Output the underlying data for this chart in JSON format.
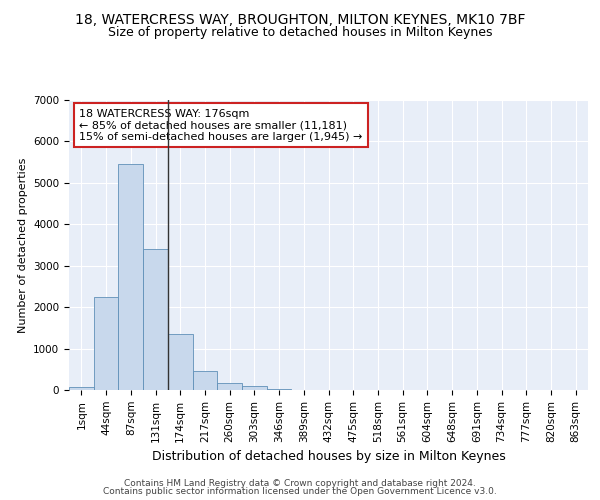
{
  "title1": "18, WATERCRESS WAY, BROUGHTON, MILTON KEYNES, MK10 7BF",
  "title2": "Size of property relative to detached houses in Milton Keynes",
  "xlabel": "Distribution of detached houses by size in Milton Keynes",
  "ylabel": "Number of detached properties",
  "categories": [
    "1sqm",
    "44sqm",
    "87sqm",
    "131sqm",
    "174sqm",
    "217sqm",
    "260sqm",
    "303sqm",
    "346sqm",
    "389sqm",
    "432sqm",
    "475sqm",
    "518sqm",
    "561sqm",
    "604sqm",
    "648sqm",
    "691sqm",
    "734sqm",
    "777sqm",
    "820sqm",
    "863sqm"
  ],
  "values": [
    70,
    2250,
    5450,
    3400,
    1350,
    450,
    170,
    90,
    30,
    5,
    2,
    1,
    0,
    0,
    0,
    0,
    0,
    0,
    0,
    0,
    0
  ],
  "bar_color": "#c8d8ec",
  "bar_edge_color": "#6090b8",
  "background_color": "#e8eef8",
  "grid_color": "#ffffff",
  "annotation_text": "18 WATERCRESS WAY: 176sqm\n← 85% of detached houses are smaller (11,181)\n15% of semi-detached houses are larger (1,945) →",
  "annotation_box_color": "#ffffff",
  "annotation_border_color": "#cc2222",
  "vline_index": 4,
  "ylim": [
    0,
    7000
  ],
  "yticks": [
    0,
    1000,
    2000,
    3000,
    4000,
    5000,
    6000,
    7000
  ],
  "footnote1": "Contains HM Land Registry data © Crown copyright and database right 2024.",
  "footnote2": "Contains public sector information licensed under the Open Government Licence v3.0.",
  "title1_fontsize": 10,
  "title2_fontsize": 9,
  "xlabel_fontsize": 9,
  "ylabel_fontsize": 8,
  "tick_fontsize": 7.5,
  "annotation_fontsize": 8,
  "footnote_fontsize": 6.5
}
